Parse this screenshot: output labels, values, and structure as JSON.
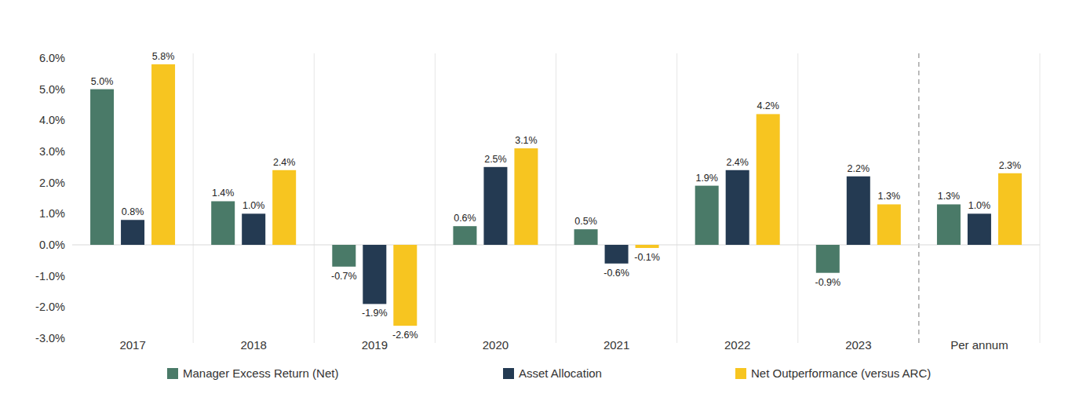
{
  "chart_data": {
    "type": "bar",
    "categories": [
      "2017",
      "2018",
      "2019",
      "2020",
      "2021",
      "2022",
      "2023",
      "Per annum"
    ],
    "series": [
      {
        "name": "Manager Excess Return (Net)",
        "color": "#4a7a68",
        "values": [
          5.0,
          1.4,
          -0.7,
          0.6,
          0.5,
          1.9,
          -0.9,
          1.3
        ],
        "value_labels": [
          "5.0%",
          "1.4%",
          "-0.7%",
          "0.6%",
          "0.5%",
          "1.9%",
          "-0.9%",
          "1.3%"
        ]
      },
      {
        "name": "Asset Allocation",
        "color": "#243a52",
        "values": [
          0.8,
          1.0,
          -1.9,
          2.5,
          -0.6,
          2.4,
          2.2,
          1.0
        ],
        "value_labels": [
          "0.8%",
          "1.0%",
          "-1.9%",
          "2.5%",
          "-0.6%",
          "2.4%",
          "2.2%",
          "1.0%"
        ]
      },
      {
        "name": "Net Outperformance (versus ARC)",
        "color": "#f7c520",
        "values": [
          5.8,
          2.4,
          -2.6,
          3.1,
          -0.1,
          4.2,
          1.3,
          2.3
        ],
        "value_labels": [
          "5.8%",
          "2.4%",
          "-2.6%",
          "3.1%",
          "-0.1%",
          "4.2%",
          "1.3%",
          "2.3%"
        ]
      }
    ],
    "ylim": [
      -3,
      6
    ],
    "yticks": [
      {
        "value": -3,
        "label": "-3.0%"
      },
      {
        "value": -2,
        "label": "-2.0%"
      },
      {
        "value": -1,
        "label": "-1.0%"
      },
      {
        "value": 0,
        "label": "0.0%"
      },
      {
        "value": 1,
        "label": "1.0%"
      },
      {
        "value": 2,
        "label": "2.0%"
      },
      {
        "value": 3,
        "label": "3.0%"
      },
      {
        "value": 4,
        "label": "4.0%"
      },
      {
        "value": 5,
        "label": "5.0%"
      },
      {
        "value": 6,
        "label": "6.0%"
      }
    ],
    "grid": true,
    "data_labels": true,
    "legend": "bottom"
  }
}
